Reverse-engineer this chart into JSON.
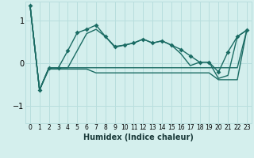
{
  "xlabel": "Humidex (Indice chaleur)",
  "ylabel": "",
  "xlim": [
    -0.5,
    23.5
  ],
  "ylim": [
    -1.4,
    1.45
  ],
  "yticks": [
    -1,
    0,
    1
  ],
  "xticks": [
    0,
    1,
    2,
    3,
    4,
    5,
    6,
    7,
    8,
    9,
    10,
    11,
    12,
    13,
    14,
    15,
    16,
    17,
    18,
    19,
    20,
    21,
    22,
    23
  ],
  "background_color": "#d4efed",
  "grid_color": "#b8dedd",
  "line_color": "#1a6b63",
  "series": [
    {
      "y": [
        1.35,
        -0.62,
        -0.1,
        -0.1,
        0.3,
        0.72,
        0.8,
        0.9,
        0.63,
        0.4,
        0.43,
        0.48,
        0.57,
        0.48,
        0.53,
        0.43,
        0.33,
        0.18,
        0.03,
        0.03,
        -0.2,
        0.27,
        0.63,
        0.78
      ],
      "has_markers": true
    },
    {
      "y": [
        1.35,
        -0.62,
        -0.1,
        -0.1,
        -0.1,
        -0.1,
        -0.1,
        -0.1,
        -0.1,
        -0.1,
        -0.1,
        -0.1,
        -0.1,
        -0.1,
        -0.1,
        -0.1,
        -0.1,
        -0.1,
        -0.1,
        -0.1,
        -0.1,
        -0.1,
        -0.1,
        0.78
      ],
      "has_markers": false
    },
    {
      "y": [
        1.35,
        -0.62,
        -0.1,
        -0.1,
        -0.1,
        0.3,
        0.7,
        0.8,
        0.63,
        0.38,
        0.43,
        0.48,
        0.57,
        0.48,
        0.53,
        0.43,
        0.23,
        -0.05,
        0.03,
        0.03,
        -0.35,
        -0.28,
        0.63,
        0.78
      ],
      "has_markers": false
    },
    {
      "y": [
        1.35,
        -0.62,
        -0.13,
        -0.13,
        -0.13,
        -0.13,
        -0.13,
        -0.22,
        -0.22,
        -0.22,
        -0.22,
        -0.22,
        -0.22,
        -0.22,
        -0.22,
        -0.22,
        -0.22,
        -0.22,
        -0.22,
        -0.22,
        -0.38,
        -0.38,
        -0.38,
        0.78
      ],
      "has_markers": false
    }
  ],
  "markersize": 3,
  "linewidth": 1.0
}
